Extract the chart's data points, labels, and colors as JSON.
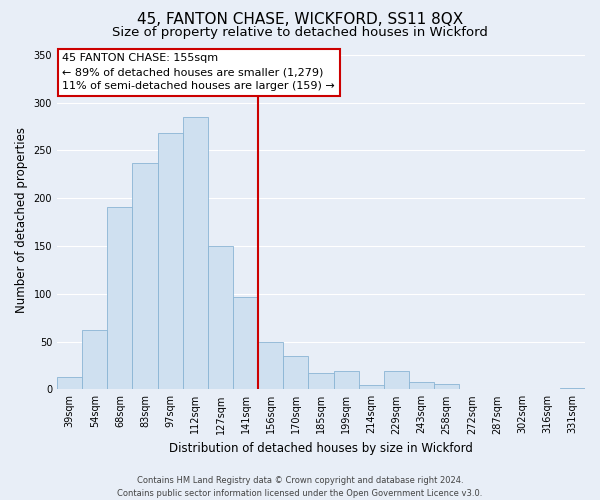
{
  "title": "45, FANTON CHASE, WICKFORD, SS11 8QX",
  "subtitle": "Size of property relative to detached houses in Wickford",
  "xlabel": "Distribution of detached houses by size in Wickford",
  "ylabel": "Number of detached properties",
  "bar_labels": [
    "39sqm",
    "54sqm",
    "68sqm",
    "83sqm",
    "97sqm",
    "112sqm",
    "127sqm",
    "141sqm",
    "156sqm",
    "170sqm",
    "185sqm",
    "199sqm",
    "214sqm",
    "229sqm",
    "243sqm",
    "258sqm",
    "272sqm",
    "287sqm",
    "302sqm",
    "316sqm",
    "331sqm"
  ],
  "bar_values": [
    13,
    62,
    191,
    237,
    268,
    285,
    150,
    97,
    49,
    35,
    17,
    19,
    4,
    19,
    8,
    6,
    0,
    0,
    0,
    0,
    1
  ],
  "bar_color": "#cfe0f0",
  "bar_edge_color": "#8ab4d4",
  "vline_color": "#cc0000",
  "annotation_title": "45 FANTON CHASE: 155sqm",
  "annotation_line1": "← 89% of detached houses are smaller (1,279)",
  "annotation_line2": "11% of semi-detached houses are larger (159) →",
  "annotation_box_color": "#ffffff",
  "annotation_box_edge": "#cc0000",
  "ylim": [
    0,
    355
  ],
  "yticks": [
    0,
    50,
    100,
    150,
    200,
    250,
    300,
    350
  ],
  "footer_line1": "Contains HM Land Registry data © Crown copyright and database right 2024.",
  "footer_line2": "Contains public sector information licensed under the Open Government Licence v3.0.",
  "background_color": "#e8eef7",
  "grid_color": "#ffffff",
  "title_fontsize": 11,
  "subtitle_fontsize": 9.5,
  "axis_label_fontsize": 8.5,
  "tick_fontsize": 7,
  "footer_fontsize": 6,
  "vline_index": 8
}
